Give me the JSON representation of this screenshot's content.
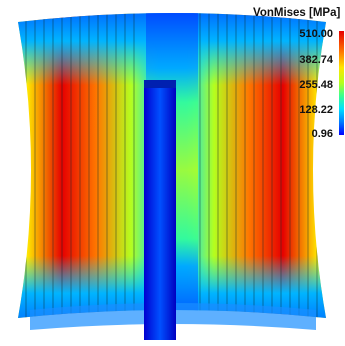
{
  "legend": {
    "title": "VonMises [MPa]",
    "ticks": [
      "510.00",
      "382.74",
      "255.48",
      "128.22",
      "0.96"
    ]
  },
  "colors": {
    "colormap": [
      "#0000ff",
      "#0078ff",
      "#00e0ff",
      "#3cff8c",
      "#b4ff1e",
      "#ffe600",
      "#ff7800",
      "#e60000"
    ],
    "background": "#ffffff"
  }
}
